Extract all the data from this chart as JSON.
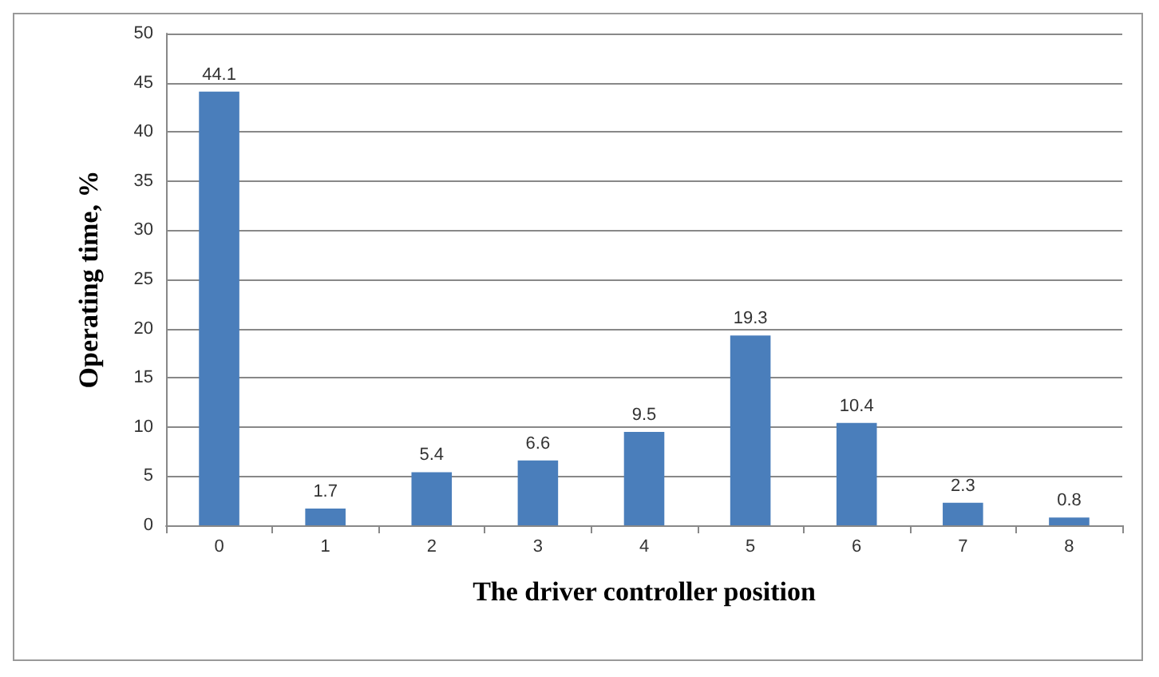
{
  "chart_data": {
    "type": "bar",
    "xlabel": "The driver controller position",
    "ylabel": "Operating time, %",
    "categories": [
      "0",
      "1",
      "2",
      "3",
      "4",
      "5",
      "6",
      "7",
      "8"
    ],
    "values": [
      44.1,
      1.7,
      5.4,
      6.6,
      9.5,
      19.3,
      10.4,
      2.3,
      0.8
    ],
    "color": "#4a7ebb",
    "ylim": [
      0,
      50
    ],
    "yticks": [
      0,
      5,
      10,
      15,
      20,
      25,
      30,
      35,
      40,
      45,
      50
    ],
    "grid": "y",
    "data_labels": true
  }
}
